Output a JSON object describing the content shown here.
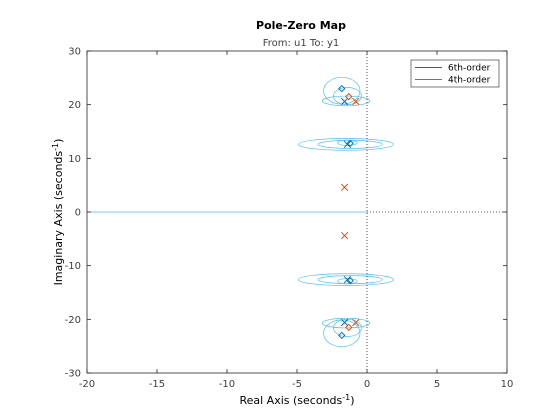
{
  "chart_data": {
    "type": "scatter",
    "title": "Pole-Zero Map",
    "subtitle": "From: u1  To: y1",
    "xlabel": "Real Axis (seconds",
    "ylabel": "Imaginary Axis (seconds",
    "unit_superscript": "-1",
    "xlim": [
      -20,
      10
    ],
    "ylim": [
      -30,
      30
    ],
    "xticks": [
      -20,
      -15,
      -10,
      -5,
      0,
      5,
      10
    ],
    "yticks": [
      -30,
      -20,
      -10,
      0,
      10,
      20,
      30
    ],
    "legend": {
      "position": "top-right"
    },
    "series": [
      {
        "name": "6th-order",
        "color": "#0072BD",
        "poles": [
          [
            -1.6,
            20.6
          ],
          [
            -1.6,
            -20.6
          ],
          [
            -1.4,
            12.6
          ],
          [
            -1.4,
            -12.6
          ]
        ],
        "zeros": [
          [
            -1.8,
            23.0
          ],
          [
            -1.8,
            -23.0
          ],
          [
            -1.2,
            12.8
          ],
          [
            -1.2,
            -12.8
          ]
        ]
      },
      {
        "name": "4th-order",
        "color": "#D95319",
        "poles": [
          [
            -0.8,
            20.6
          ],
          [
            -0.8,
            -20.6
          ],
          [
            -1.6,
            4.6
          ],
          [
            -1.6,
            -4.4
          ]
        ],
        "zeros": [
          [
            -1.3,
            21.5
          ],
          [
            -1.3,
            -21.5
          ]
        ]
      }
    ],
    "uncertainty_color": "#4DBEEE",
    "uncertainty_regions": [
      {
        "center": [
          -1.8,
          22.6
        ],
        "rx": 1.3,
        "ry": 2.5
      },
      {
        "center": [
          -1.4,
          21.6
        ],
        "rx": 1.0,
        "ry": 1.6
      },
      {
        "center": [
          -1.5,
          20.7
        ],
        "rx": 1.7,
        "ry": 0.9
      },
      {
        "center": [
          -1.5,
          12.6
        ],
        "rx": 3.4,
        "ry": 1.1
      },
      {
        "center": [
          -1.2,
          12.6
        ],
        "rx": 2.3,
        "ry": 0.75
      },
      {
        "center": [
          -1.4,
          12.9
        ],
        "rx": 0.7,
        "ry": 0.5
      },
      {
        "center": [
          -1.8,
          -22.6
        ],
        "rx": 1.3,
        "ry": 2.5
      },
      {
        "center": [
          -1.4,
          -21.6
        ],
        "rx": 1.0,
        "ry": 1.6
      },
      {
        "center": [
          -1.5,
          -20.7
        ],
        "rx": 1.7,
        "ry": 0.9
      },
      {
        "center": [
          -1.5,
          -12.6
        ],
        "rx": 3.4,
        "ry": 1.1
      },
      {
        "center": [
          -1.2,
          -12.6
        ],
        "rx": 2.3,
        "ry": 0.75
      },
      {
        "center": [
          -1.4,
          -12.9
        ],
        "rx": 0.7,
        "ry": 0.5
      }
    ],
    "real_axis_region": {
      "x_from": -20,
      "x_to": 0
    }
  }
}
